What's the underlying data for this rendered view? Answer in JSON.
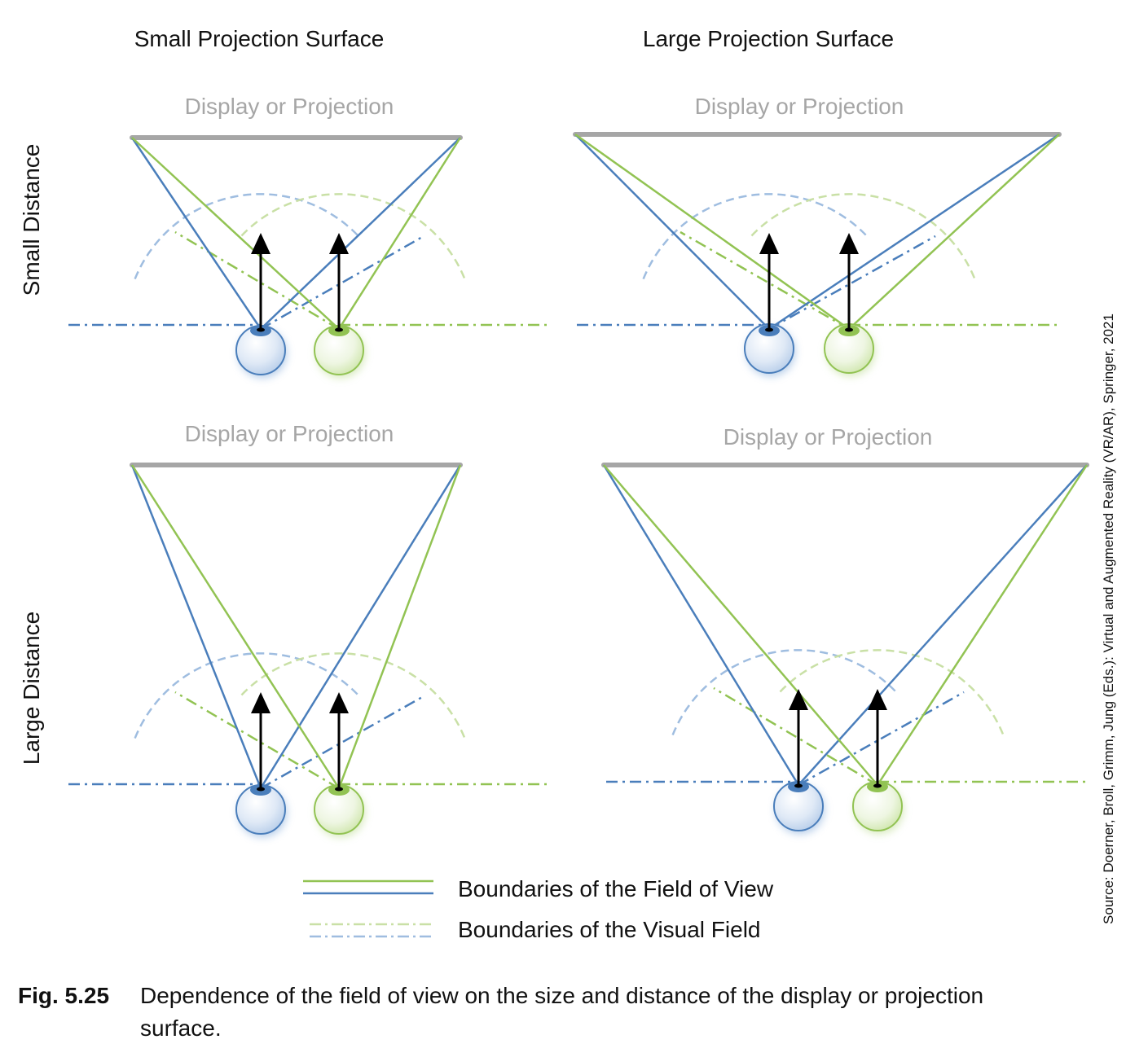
{
  "columns": [
    "Small Projection Surface",
    "Large Projection Surface"
  ],
  "rows": [
    "Small Distance",
    "Large Distance"
  ],
  "display_label": "Display or Projection",
  "legend": [
    {
      "label": "Boundaries of the Field of View",
      "style": "solid"
    },
    {
      "label": "Boundaries of the Visual Field",
      "style": "dash-dot"
    }
  ],
  "source": "Source: Doerner, Broll, Grimm, Jung (Eds.): Virtual and Augmented Reality (VR/AR), Springer, 2021",
  "caption": {
    "number": "Fig. 5.25",
    "line1": "Dependence of the field of view on the size and distance of the display or projection",
    "line2": "surface."
  },
  "colors": {
    "left_eye": "#4a7ebb",
    "right_eye": "#92c353",
    "display": "#a6a6a6",
    "arrow": "#000000"
  }
}
